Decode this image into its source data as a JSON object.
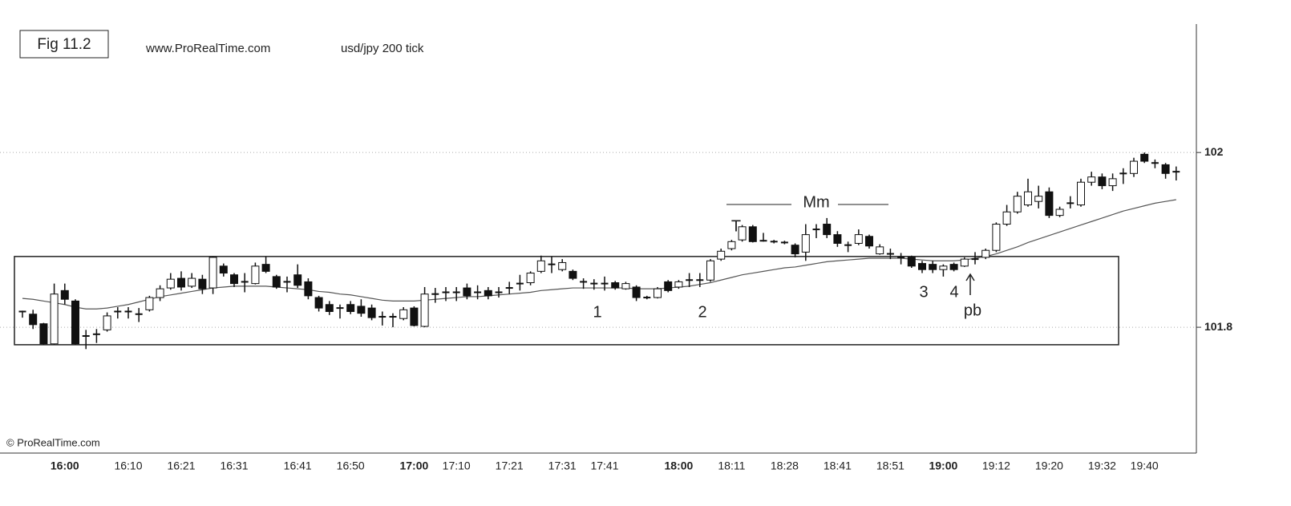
{
  "chart_data": {
    "type": "candlestick",
    "title": "Fig 11.2",
    "subtitle": "www.ProRealTime.com",
    "instrument": "usd/jpy  200 tick",
    "footer": "© ProRealTime.com",
    "annotations": [
      "Mm",
      "T",
      "1",
      "2",
      "3",
      "4",
      "pb"
    ],
    "x": [
      "",
      null,
      null,
      null,
      "16:00",
      null,
      null,
      null,
      null,
      null,
      "16:10",
      null,
      null,
      null,
      null,
      "16:21",
      null,
      null,
      null,
      null,
      "16:31",
      null,
      null,
      null,
      null,
      null,
      "16:41",
      null,
      null,
      null,
      null,
      "16:50",
      null,
      null,
      null,
      null,
      null,
      "17:00",
      null,
      null,
      null,
      "17:10",
      null,
      null,
      null,
      null,
      "17:21",
      null,
      null,
      null,
      null,
      "17:31",
      null,
      null,
      null,
      "17:41",
      null,
      null,
      null,
      null,
      null,
      null,
      "18:00",
      null,
      null,
      null,
      null,
      "18:11",
      null,
      null,
      null,
      null,
      "18:28",
      null,
      null,
      null,
      null,
      "18:41",
      null,
      null,
      null,
      null,
      "18:51",
      null,
      null,
      null,
      null,
      "19:00",
      null,
      null,
      null,
      null,
      "19:12",
      null,
      null,
      null,
      null,
      "19:20",
      null,
      null,
      null,
      null,
      "19:32",
      null,
      null,
      null,
      "19:40",
      null,
      null,
      null
    ],
    "open": [
      101.818,
      101.815,
      101.804,
      101.781,
      101.842,
      101.83,
      101.79,
      101.792,
      101.797,
      101.818,
      101.818,
      101.815,
      101.82,
      101.834,
      101.845,
      101.856,
      101.847,
      101.855,
      101.845,
      101.87,
      101.86,
      101.852,
      101.85,
      101.872,
      101.858,
      101.852,
      101.86,
      101.852,
      101.834,
      101.826,
      101.822,
      101.826,
      101.824,
      101.822,
      101.812,
      101.812,
      101.81,
      101.822,
      101.801,
      101.838,
      101.84,
      101.84,
      101.845,
      101.84,
      101.842,
      101.84,
      101.845,
      101.85,
      101.851,
      101.864,
      101.872,
      101.866,
      101.864,
      101.852,
      101.85,
      101.85,
      101.851,
      101.844,
      101.846,
      101.834,
      101.834,
      101.852,
      101.846,
      101.854,
      101.854,
      101.854,
      101.878,
      101.89,
      101.9,
      101.915,
      101.899,
      101.898,
      101.897,
      101.894,
      101.886,
      101.912,
      101.918,
      101.906,
      101.894,
      101.896,
      101.904,
      101.884,
      101.884,
      101.88,
      101.88,
      101.873,
      101.872,
      101.866,
      101.872,
      101.87,
      101.878,
      101.88,
      101.888,
      101.918,
      101.932,
      101.94,
      101.944,
      101.955,
      101.928,
      101.942,
      101.94,
      101.966,
      101.972,
      101.962,
      101.976,
      101.976,
      101.998,
      101.988,
      101.986,
      101.978
    ],
    "high": [
      101.819,
      101.82,
      101.805,
      101.85,
      101.85,
      101.832,
      101.797,
      101.798,
      101.817,
      101.823,
      101.823,
      101.822,
      101.836,
      101.848,
      101.862,
      101.864,
      101.862,
      101.86,
      101.881,
      101.873,
      101.862,
      101.862,
      101.874,
      101.881,
      101.86,
      101.858,
      101.872,
      101.856,
      101.836,
      101.83,
      101.826,
      101.83,
      101.832,
      101.826,
      101.818,
      101.816,
      101.823,
      101.824,
      101.846,
      101.845,
      101.846,
      101.846,
      101.85,
      101.848,
      101.846,
      101.846,
      101.852,
      101.86,
      101.864,
      101.882,
      101.881,
      101.878,
      101.866,
      101.856,
      101.855,
      101.858,
      101.853,
      101.852,
      101.848,
      101.836,
      101.846,
      101.854,
      101.854,
      101.862,
      101.862,
      101.878,
      101.89,
      101.9,
      101.917,
      101.917,
      101.908,
      101.9,
      101.899,
      101.896,
      101.918,
      101.918,
      101.925,
      101.91,
      101.898,
      101.912,
      101.906,
      101.895,
      101.89,
      101.885,
      101.882,
      101.876,
      101.876,
      101.872,
      101.874,
      101.88,
      101.886,
      101.89,
      101.92,
      101.94,
      101.955,
      101.97,
      101.962,
      101.96,
      101.938,
      101.95,
      101.97,
      101.978,
      101.976,
      101.976,
      101.982,
      101.994,
      102.0,
      101.992,
      101.988,
      101.984
    ],
    "low": [
      101.811,
      101.798,
      101.78,
      101.78,
      101.826,
      101.78,
      101.775,
      101.782,
      101.795,
      101.81,
      101.81,
      101.806,
      101.818,
      101.83,
      101.843,
      101.842,
      101.845,
      101.838,
      101.838,
      101.858,
      101.846,
      101.84,
      101.849,
      101.862,
      101.844,
      101.84,
      101.845,
      101.832,
      101.818,
      101.814,
      101.81,
      101.815,
      101.812,
      101.808,
      101.802,
      101.8,
      101.808,
      101.801,
      101.8,
      101.828,
      101.83,
      101.83,
      101.832,
      101.832,
      101.832,
      101.834,
      101.838,
      101.842,
      101.848,
      101.862,
      101.862,
      101.864,
      101.854,
      101.844,
      101.843,
      101.842,
      101.843,
      101.843,
      101.83,
      101.832,
      101.833,
      101.84,
      101.844,
      101.846,
      101.846,
      101.852,
      101.876,
      101.888,
      101.898,
      101.897,
      101.898,
      101.896,
      101.895,
      101.88,
      101.876,
      101.902,
      101.902,
      101.892,
      101.886,
      101.894,
      101.89,
      101.883,
      101.878,
      101.872,
      101.868,
      101.862,
      101.862,
      101.858,
      101.864,
      101.869,
      101.872,
      101.878,
      101.886,
      101.916,
      101.93,
      101.938,
      101.936,
      101.925,
      101.926,
      101.936,
      101.938,
      101.962,
      101.958,
      101.956,
      101.964,
      101.972,
      101.988,
      101.982,
      101.97,
      101.968
    ],
    "close": [
      101.818,
      101.803,
      101.781,
      101.838,
      101.832,
      101.781,
      101.79,
      101.792,
      101.813,
      101.818,
      101.818,
      101.815,
      101.834,
      101.844,
      101.855,
      101.846,
      101.856,
      101.844,
      101.88,
      101.862,
      101.85,
      101.852,
      101.87,
      101.864,
      101.846,
      101.852,
      101.848,
      101.836,
      101.822,
      101.818,
      101.822,
      101.818,
      101.816,
      101.811,
      101.812,
      101.812,
      101.82,
      101.802,
      101.838,
      101.838,
      101.84,
      101.84,
      101.836,
      101.84,
      101.836,
      101.84,
      101.845,
      101.85,
      101.862,
      101.876,
      101.872,
      101.874,
      101.856,
      101.852,
      101.85,
      101.85,
      101.845,
      101.85,
      101.834,
      101.834,
      101.844,
      101.842,
      101.852,
      101.854,
      101.854,
      101.876,
      101.887,
      101.898,
      101.915,
      101.898,
      101.899,
      101.898,
      101.897,
      101.884,
      101.906,
      101.912,
      101.906,
      101.896,
      101.894,
      101.906,
      101.893,
      101.892,
      101.884,
      101.88,
      101.87,
      101.866,
      101.866,
      101.87,
      101.866,
      101.878,
      101.878,
      101.888,
      101.918,
      101.932,
      101.95,
      101.955,
      101.95,
      101.928,
      101.935,
      101.942,
      101.966,
      101.972,
      101.962,
      101.97,
      101.976,
      101.99,
      101.99,
      101.988,
      101.976,
      101.978
    ],
    "ma": [
      101.833,
      101.832,
      101.83,
      101.828,
      101.826,
      101.823,
      101.821,
      101.821,
      101.822,
      101.824,
      101.826,
      101.829,
      101.832,
      101.835,
      101.837,
      101.839,
      101.841,
      101.843,
      101.845,
      101.846,
      101.847,
      101.847,
      101.847,
      101.847,
      101.846,
      101.845,
      101.844,
      101.843,
      101.841,
      101.84,
      101.838,
      101.837,
      101.835,
      101.833,
      101.831,
      101.83,
      101.83,
      101.83,
      101.831,
      101.832,
      101.833,
      101.834,
      101.835,
      101.835,
      101.836,
      101.837,
      101.838,
      101.839,
      101.84,
      101.842,
      101.843,
      101.844,
      101.845,
      101.845,
      101.845,
      101.845,
      101.845,
      101.845,
      101.844,
      101.844,
      101.844,
      101.845,
      101.846,
      101.847,
      101.849,
      101.851,
      101.854,
      101.857,
      101.86,
      101.862,
      101.864,
      101.866,
      101.868,
      101.869,
      101.871,
      101.873,
      101.875,
      101.876,
      101.877,
      101.878,
      101.879,
      101.879,
      101.879,
      101.879,
      101.878,
      101.877,
      101.876,
      101.876,
      101.876,
      101.877,
      101.879,
      101.881,
      101.884,
      101.888,
      101.892,
      101.897,
      101.901,
      101.905,
      101.909,
      101.913,
      101.917,
      101.921,
      101.925,
      101.929,
      101.933,
      101.936,
      101.939,
      101.942,
      101.944,
      101.946
    ],
    "range_box": [
      101.881,
      101.78
    ],
    "ylim": [
      101.656,
      102.147
    ],
    "yticks": [
      102,
      101.8
    ],
    "grid": true,
    "up_color": "#ffffff",
    "down_color": "#111111",
    "ma_color": "#555555"
  }
}
